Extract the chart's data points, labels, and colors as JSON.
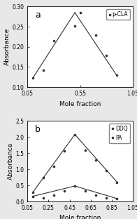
{
  "panel_a": {
    "label": "a",
    "legend_label": "p-CLA",
    "x": [
      0.1,
      0.2,
      0.3,
      0.5,
      0.55,
      0.7,
      0.8,
      0.9
    ],
    "y": [
      0.122,
      0.142,
      0.215,
      0.252,
      0.285,
      0.23,
      0.178,
      0.13
    ],
    "xlim": [
      0.05,
      1.05
    ],
    "ylim": [
      0.1,
      0.3
    ],
    "yticks": [
      0.1,
      0.15,
      0.2,
      0.25,
      0.3
    ],
    "xticks": [
      0.05,
      0.55,
      1.05
    ],
    "xlabel": "Mole fraction",
    "ylabel": "Absorbance",
    "line_segments": [
      {
        "x": [
          0.1,
          0.5
        ],
        "y": [
          0.122,
          0.285
        ]
      },
      {
        "x": [
          0.5,
          0.9
        ],
        "y": [
          0.285,
          0.128
        ]
      }
    ]
  },
  "panel_b": {
    "label": "b",
    "series": [
      {
        "legend_label": "DDQ",
        "x": [
          0.1,
          0.2,
          0.3,
          0.4,
          0.5,
          0.6,
          0.7,
          0.8,
          0.9
        ],
        "y": [
          0.28,
          0.75,
          1.1,
          1.58,
          2.08,
          1.6,
          1.28,
          0.97,
          0.6
        ],
        "line_segments": [
          {
            "x": [
              0.1,
              0.5
            ],
            "y": [
              0.28,
              2.08
            ]
          },
          {
            "x": [
              0.5,
              0.9
            ],
            "y": [
              2.08,
              0.6
            ]
          }
        ]
      },
      {
        "legend_label": "PA",
        "x": [
          0.1,
          0.2,
          0.3,
          0.4,
          0.5,
          0.6,
          0.7,
          0.8,
          0.9
        ],
        "y": [
          0.16,
          0.1,
          0.2,
          0.32,
          0.48,
          0.32,
          0.2,
          0.12,
          0.09
        ],
        "line_segments": [
          {
            "x": [
              0.1,
              0.5
            ],
            "y": [
              0.16,
              0.48
            ]
          },
          {
            "x": [
              0.5,
              0.9
            ],
            "y": [
              0.48,
              0.09
            ]
          }
        ]
      }
    ],
    "xlim": [
      0.05,
      1.05
    ],
    "ylim": [
      0.0,
      2.5
    ],
    "yticks": [
      0.0,
      0.5,
      1.0,
      1.5,
      2.0,
      2.5
    ],
    "xticks": [
      0.05,
      0.25,
      0.45,
      0.65,
      0.85,
      1.05
    ],
    "xlabel": "Mole fraction",
    "ylabel": "Absorbance"
  },
  "marker": "o",
  "marker_size": 2.2,
  "line_color": "#303030",
  "background_color": "#ffffff",
  "fig_background": "#e8e8e8",
  "tick_fontsize": 5.5,
  "label_fontsize": 6.5,
  "legend_fontsize": 5.5,
  "panel_label_fontsize": 9
}
